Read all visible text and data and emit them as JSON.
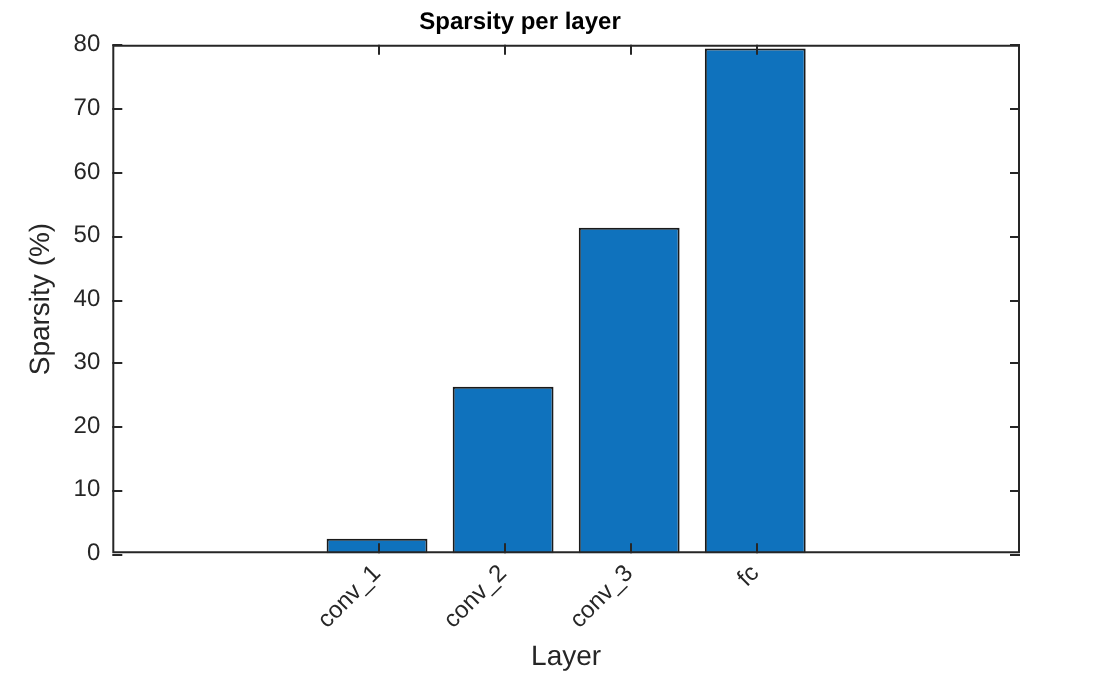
{
  "chart_data": {
    "type": "bar",
    "title": "Sparsity per layer",
    "xlabel": "Layer",
    "ylabel": "Sparsity (%)",
    "categories": [
      "conv_1",
      "conv_2",
      "conv_3",
      "fc"
    ],
    "values": [
      2.3,
      26.2,
      51.2,
      79.4
    ],
    "color": "#0f72bd",
    "ylim": [
      0,
      80
    ],
    "yticks": [
      0,
      10,
      20,
      30,
      40,
      50,
      60,
      70,
      80
    ],
    "grid": false,
    "legend": false
  }
}
